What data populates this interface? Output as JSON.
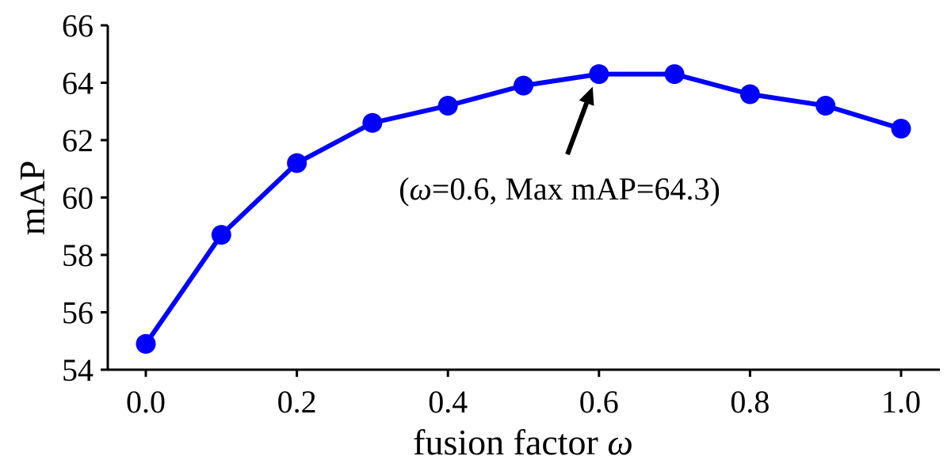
{
  "chart_data": {
    "type": "line",
    "x": [
      0.0,
      0.1,
      0.2,
      0.3,
      0.4,
      0.5,
      0.6,
      0.7,
      0.8,
      0.9,
      1.0
    ],
    "series": [
      {
        "values": [
          54.9,
          58.7,
          61.2,
          62.6,
          63.2,
          63.9,
          64.3,
          64.3,
          63.6,
          63.2,
          62.4
        ]
      }
    ],
    "xlabel": "fusion factor ω",
    "ylabel": "mAP",
    "xlim": [
      -0.05,
      1.05
    ],
    "ylim": [
      54,
      66
    ],
    "xticks": [
      "0.0",
      "0.2",
      "0.4",
      "0.6",
      "0.8",
      "1.0"
    ],
    "yticks": [
      "54",
      "56",
      "58",
      "60",
      "62",
      "64",
      "66"
    ],
    "grid": false,
    "annotation": {
      "text_prefix": "(",
      "symbol": "ω",
      "text_suffix": "=0.6, Max mAP=64.3)",
      "target": {
        "x": 0.6,
        "y": 64.3
      }
    },
    "colors": {
      "series": "#0000ff",
      "axes": "#000000"
    }
  }
}
